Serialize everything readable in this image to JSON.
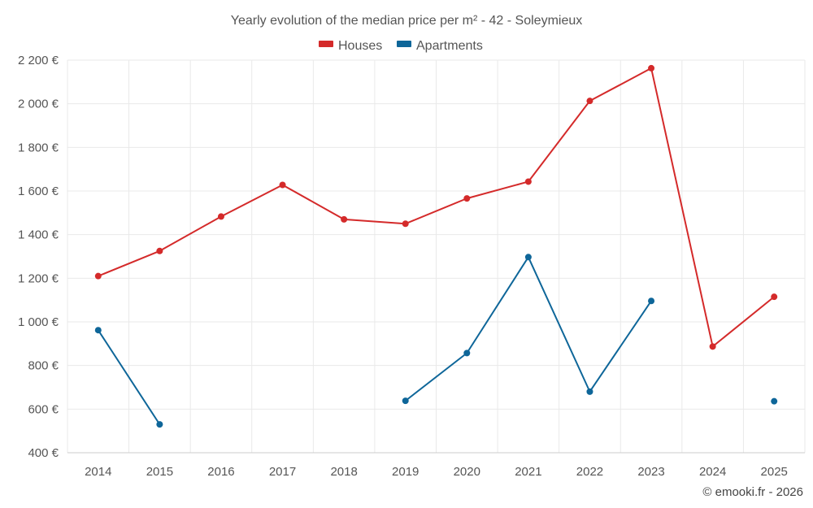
{
  "chart_data": {
    "type": "line",
    "title": "Yearly evolution of the median price per m² - 42 - Soleymieux",
    "categories": [
      "2014",
      "2015",
      "2016",
      "2017",
      "2018",
      "2019",
      "2020",
      "2021",
      "2022",
      "2023",
      "2024",
      "2025"
    ],
    "series": [
      {
        "name": "Houses",
        "color": "#d42a2a",
        "values": [
          1210,
          1325,
          1483,
          1628,
          1470,
          1450,
          1566,
          1643,
          2013,
          2163,
          887,
          1115
        ]
      },
      {
        "name": "Apartments",
        "color": "#0e6699",
        "values": [
          962,
          530,
          null,
          null,
          null,
          638,
          857,
          1297,
          680,
          1096,
          null,
          636
        ]
      }
    ],
    "ylim": [
      400,
      2200
    ],
    "yticks": [
      "2 200 €",
      "2 000 €",
      "1 800 €",
      "1 600 €",
      "1 400 €",
      "1 200 €",
      "1 000 €",
      "800 €",
      "600 €",
      "400 €"
    ],
    "ytick_values": [
      2200,
      2000,
      1800,
      1600,
      1400,
      1200,
      1000,
      800,
      600,
      400
    ],
    "grid": true,
    "legend_position": "top-center"
  },
  "credit": "© emooki.fr - 2026"
}
